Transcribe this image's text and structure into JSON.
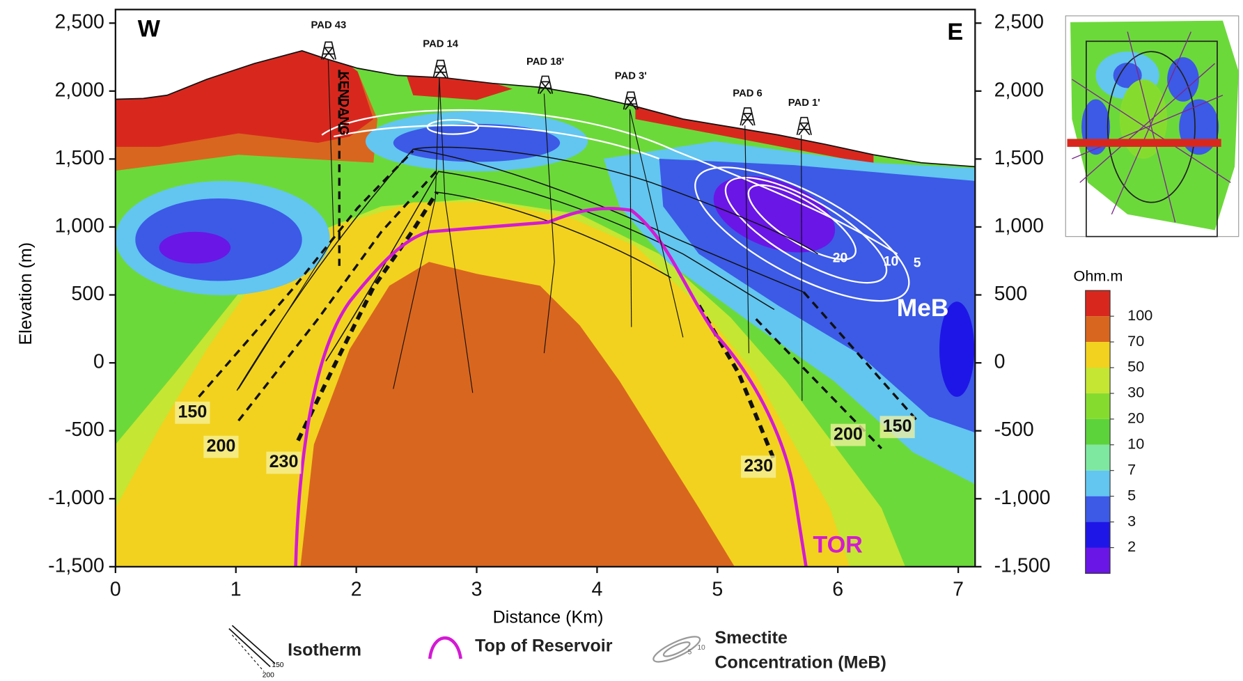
{
  "chart_data": {
    "type": "section",
    "xlabel": "Distance (Km)",
    "ylabel": "Elevation (m)",
    "xlim": [
      0,
      7.14
    ],
    "xticks": [
      0,
      1,
      2,
      3,
      4,
      5,
      6,
      7
    ],
    "ylim": [
      -1500,
      2600
    ],
    "yticks": [
      {
        "value": 2500,
        "label": "2,500"
      },
      {
        "value": 2000,
        "label": "2,000"
      },
      {
        "value": 1500,
        "label": "1,500"
      },
      {
        "value": 1000,
        "label": "1,000"
      },
      500,
      0,
      -500,
      {
        "value": -1000,
        "label": "-1,000"
      },
      {
        "value": -1500,
        "label": "-1,500"
      }
    ],
    "y2lim": [
      -1500,
      2600
    ],
    "y2ticks": [
      {
        "value": 2500,
        "label": "2,500"
      },
      {
        "value": 2000,
        "label": "2,000"
      },
      {
        "value": 1500,
        "label": "1,500"
      },
      {
        "value": 1000,
        "label": "1,000"
      },
      500,
      0,
      -500,
      {
        "value": -1000,
        "label": "-1,000"
      },
      {
        "value": -1500,
        "label": "-1,500"
      }
    ],
    "west_label": "W",
    "east_label": "E",
    "pads": [
      {
        "label": "PAD 43",
        "x": 1.77
      },
      {
        "label": "PAD 14",
        "x": 2.7
      },
      {
        "label": "PAD 18'",
        "x": 3.57
      },
      {
        "label": "PAD 3'",
        "x": 4.28
      },
      {
        "label": "PAD 6",
        "x": 5.25
      },
      {
        "label": "PAD 1'",
        "x": 5.72
      }
    ],
    "fault_label": "KENDANG",
    "isotherm_labels": [
      150,
      200,
      230
    ],
    "smectite_contours": [
      20,
      10,
      5
    ],
    "smectite_label": "MeB",
    "reservoir_label": "TOR",
    "colorbar": {
      "title": "Ohm.m",
      "ticks": [
        100,
        70,
        50,
        30,
        20,
        10,
        7,
        5,
        3,
        2
      ],
      "colors": [
        "#d8281e",
        "#d9661f",
        "#f2d21e",
        "#c5e632",
        "#86dc2e",
        "#5cd33a",
        "#7ee8a0",
        "#62c6f0",
        "#3c5ae6",
        "#1e16e6",
        "#6a16e6"
      ]
    },
    "legend": {
      "isotherm": "Isotherm",
      "isotherm_icon_labels": [
        150,
        200
      ],
      "reservoir": "Top of Reservoir",
      "smectite": [
        "Smectite",
        "Concentration (MeB)"
      ],
      "smectite_icon_labels": [
        5,
        10
      ]
    }
  }
}
